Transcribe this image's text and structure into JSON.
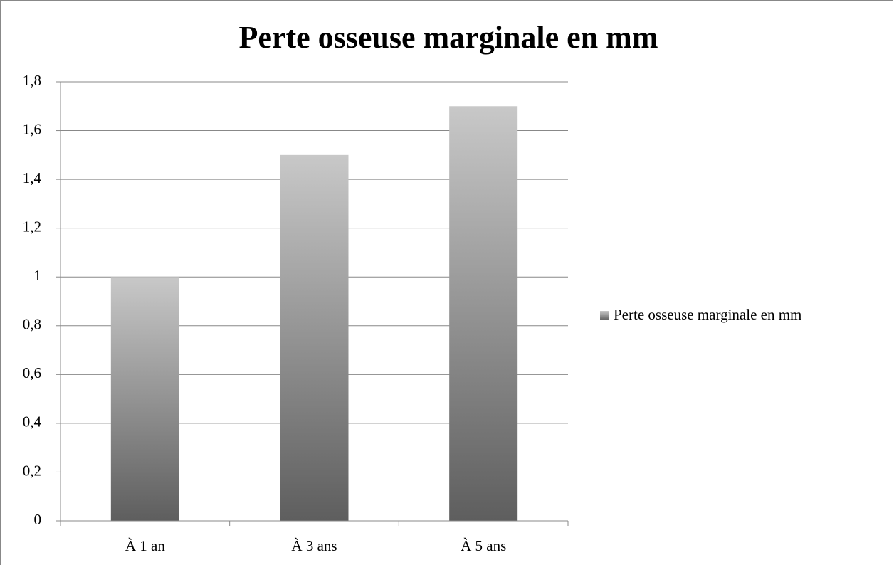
{
  "chart_data": {
    "type": "bar",
    "title": "Perte osseuse marginale en mm",
    "categories": [
      "À 1 an",
      "À 3 ans",
      "À 5 ans"
    ],
    "series": [
      {
        "name": "Perte osseuse marginale en mm",
        "colors": {
          "top": "#c8c8c8",
          "bottom": "#5e5e5e"
        },
        "values": [
          1,
          1.5,
          1.7
        ]
      }
    ],
    "ylim": [
      0,
      1.8
    ],
    "yticks": [
      0,
      {
        "value": 0.2,
        "label": "0,2"
      },
      {
        "value": 0.4,
        "label": "0,4"
      },
      {
        "value": 0.6,
        "label": "0,6"
      },
      {
        "value": 0.8,
        "label": "0,8"
      },
      1,
      {
        "value": 1.2,
        "label": "1,2"
      },
      {
        "value": 1.4,
        "label": "1,4"
      },
      {
        "value": 1.6,
        "label": "1,6"
      },
      {
        "value": 1.8,
        "label": "1,8"
      }
    ],
    "grid": true,
    "legend": "right"
  }
}
